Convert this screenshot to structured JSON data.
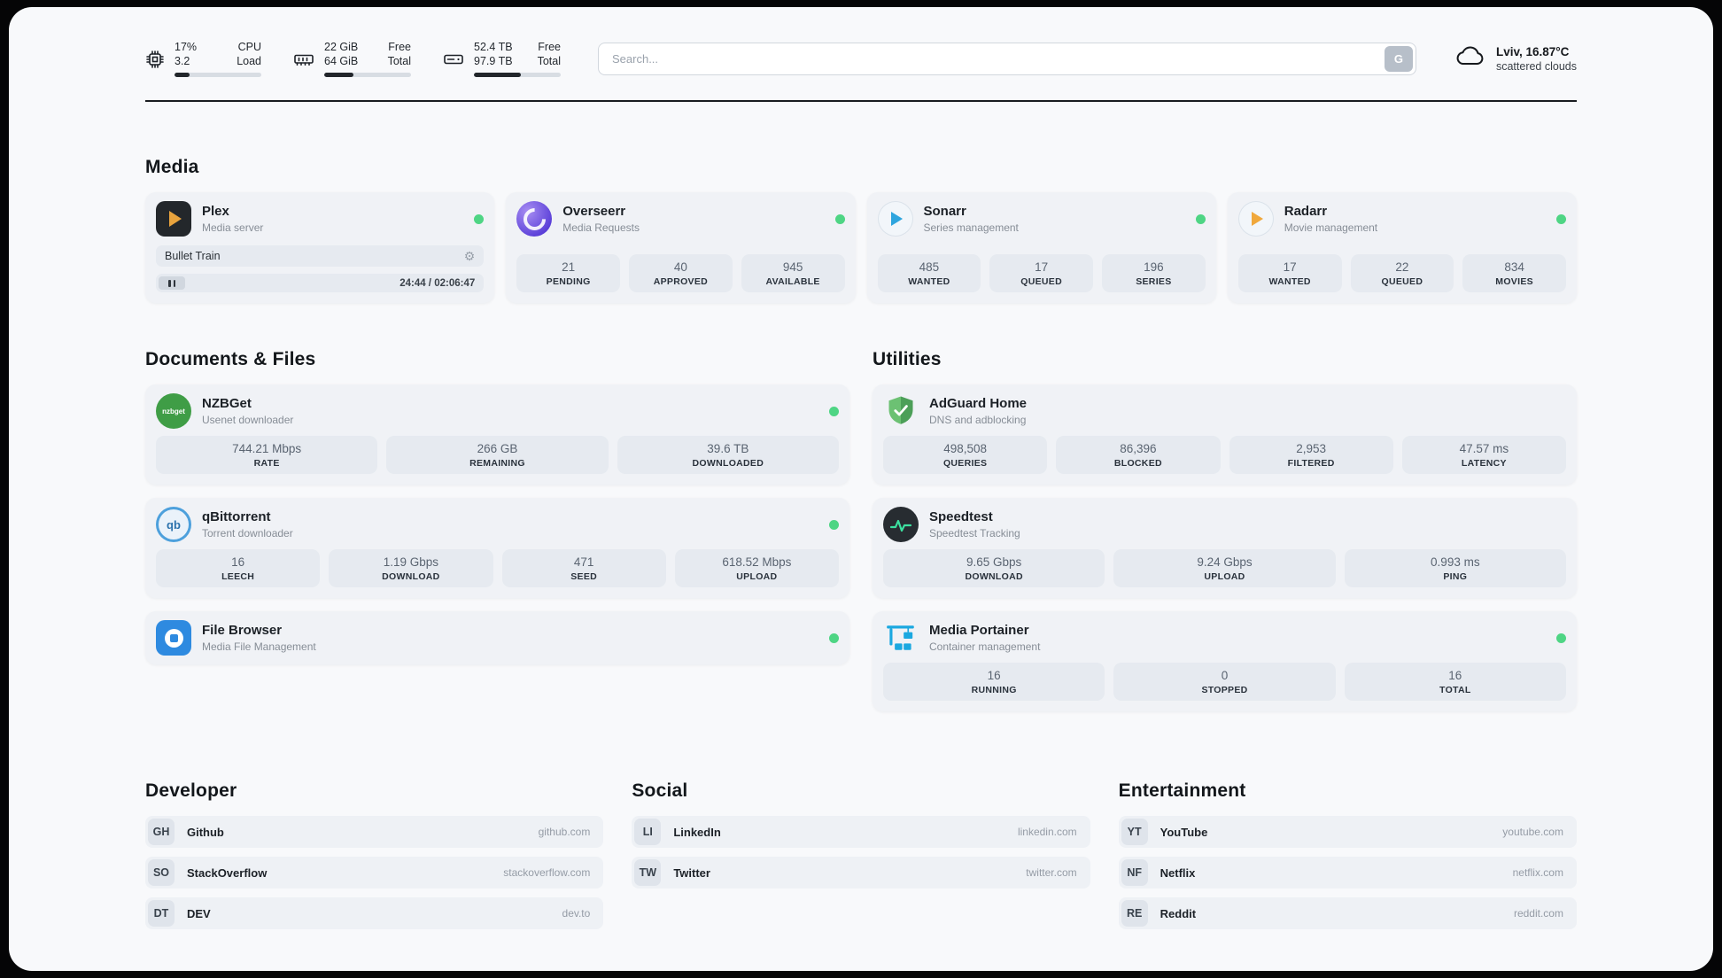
{
  "theme": {
    "accent_green": "#4ed584",
    "page_bg": "#f8f9fb",
    "card_bg": "#f0f2f6",
    "tile_bg": "#e6eaf0"
  },
  "header": {
    "cpu": {
      "value_top": "17%",
      "value_bottom": "3.2",
      "label_top": "CPU",
      "label_bottom": "Load",
      "percent": 17
    },
    "memory": {
      "value_top": "22 GiB",
      "value_bottom": "64 GiB",
      "label_top": "Free",
      "label_bottom": "Total",
      "percent": 34
    },
    "disk": {
      "value_top": "52.4 TB",
      "value_bottom": "97.9 TB",
      "label_top": "Free",
      "label_bottom": "Total",
      "percent": 54
    },
    "search": {
      "placeholder": "Search...",
      "button_label": "G"
    },
    "weather": {
      "location": "Lviv, 16.87°C",
      "condition": "scattered clouds"
    }
  },
  "sections": {
    "media": {
      "title": "Media",
      "plex": {
        "title": "Plex",
        "subtitle": "Media server",
        "now_playing": "Bullet Train",
        "time": "24:44 / 02:06:47"
      },
      "overseerr": {
        "title": "Overseerr",
        "subtitle": "Media Requests",
        "stats": [
          {
            "value": "21",
            "label": "PENDING"
          },
          {
            "value": "40",
            "label": "APPROVED"
          },
          {
            "value": "945",
            "label": "AVAILABLE"
          }
        ]
      },
      "sonarr": {
        "title": "Sonarr",
        "subtitle": "Series management",
        "stats": [
          {
            "value": "485",
            "label": "WANTED"
          },
          {
            "value": "17",
            "label": "QUEUED"
          },
          {
            "value": "196",
            "label": "SERIES"
          }
        ]
      },
      "radarr": {
        "title": "Radarr",
        "subtitle": "Movie management",
        "stats": [
          {
            "value": "17",
            "label": "WANTED"
          },
          {
            "value": "22",
            "label": "QUEUED"
          },
          {
            "value": "834",
            "label": "MOVIES"
          }
        ]
      }
    },
    "documents": {
      "title": "Documents & Files",
      "nzbget": {
        "title": "NZBGet",
        "subtitle": "Usenet downloader",
        "icon_text": "nzbget",
        "stats": [
          {
            "value": "744.21 Mbps",
            "label": "RATE"
          },
          {
            "value": "266 GB",
            "label": "REMAINING"
          },
          {
            "value": "39.6 TB",
            "label": "DOWNLOADED"
          }
        ]
      },
      "qbittorrent": {
        "title": "qBittorrent",
        "subtitle": "Torrent downloader",
        "icon_text": "qb",
        "stats": [
          {
            "value": "16",
            "label": "LEECH"
          },
          {
            "value": "1.19 Gbps",
            "label": "DOWNLOAD"
          },
          {
            "value": "471",
            "label": "SEED"
          },
          {
            "value": "618.52 Mbps",
            "label": "UPLOAD"
          }
        ]
      },
      "filebrowser": {
        "title": "File Browser",
        "subtitle": "Media File Management"
      }
    },
    "utilities": {
      "title": "Utilities",
      "adguard": {
        "title": "AdGuard Home",
        "subtitle": "DNS and adblocking",
        "stats": [
          {
            "value": "498,508",
            "label": "QUERIES"
          },
          {
            "value": "86,396",
            "label": "BLOCKED"
          },
          {
            "value": "2,953",
            "label": "FILTERED"
          },
          {
            "value": "47.57 ms",
            "label": "LATENCY"
          }
        ]
      },
      "speedtest": {
        "title": "Speedtest",
        "subtitle": "Speedtest Tracking",
        "stats": [
          {
            "value": "9.65 Gbps",
            "label": "DOWNLOAD"
          },
          {
            "value": "9.24 Gbps",
            "label": "UPLOAD"
          },
          {
            "value": "0.993 ms",
            "label": "PING"
          }
        ]
      },
      "portainer": {
        "title": "Media Portainer",
        "subtitle": "Container management",
        "stats": [
          {
            "value": "16",
            "label": "RUNNING"
          },
          {
            "value": "0",
            "label": "STOPPED"
          },
          {
            "value": "16",
            "label": "TOTAL"
          }
        ]
      }
    },
    "bookmarks": [
      {
        "title": "Developer",
        "links": [
          {
            "abbr": "GH",
            "name": "Github",
            "url": "github.com"
          },
          {
            "abbr": "SO",
            "name": "StackOverflow",
            "url": "stackoverflow.com"
          },
          {
            "abbr": "DT",
            "name": "DEV",
            "url": "dev.to"
          }
        ]
      },
      {
        "title": "Social",
        "links": [
          {
            "abbr": "LI",
            "name": "LinkedIn",
            "url": "linkedin.com"
          },
          {
            "abbr": "TW",
            "name": "Twitter",
            "url": "twitter.com"
          }
        ]
      },
      {
        "title": "Entertainment",
        "links": [
          {
            "abbr": "YT",
            "name": "YouTube",
            "url": "youtube.com"
          },
          {
            "abbr": "NF",
            "name": "Netflix",
            "url": "netflix.com"
          },
          {
            "abbr": "RE",
            "name": "Reddit",
            "url": "reddit.com"
          }
        ]
      }
    ]
  },
  "icons": {
    "gear": "⚙"
  }
}
